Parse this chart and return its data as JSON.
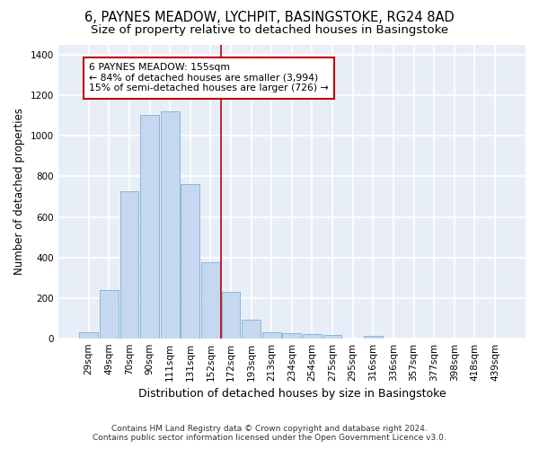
{
  "title": "6, PAYNES MEADOW, LYCHPIT, BASINGSTOKE, RG24 8AD",
  "subtitle": "Size of property relative to detached houses in Basingstoke",
  "xlabel": "Distribution of detached houses by size in Basingstoke",
  "ylabel": "Number of detached properties",
  "footer_line1": "Contains HM Land Registry data © Crown copyright and database right 2024.",
  "footer_line2": "Contains public sector information licensed under the Open Government Licence v3.0.",
  "bar_labels": [
    "29sqm",
    "49sqm",
    "70sqm",
    "90sqm",
    "111sqm",
    "131sqm",
    "152sqm",
    "172sqm",
    "193sqm",
    "213sqm",
    "234sqm",
    "254sqm",
    "275sqm",
    "295sqm",
    "316sqm",
    "336sqm",
    "357sqm",
    "377sqm",
    "398sqm",
    "418sqm",
    "439sqm"
  ],
  "bar_values": [
    30,
    240,
    725,
    1105,
    1120,
    760,
    375,
    230,
    90,
    30,
    25,
    20,
    15,
    0,
    10,
    0,
    0,
    0,
    0,
    0,
    0
  ],
  "bar_color": "#c5d8f0",
  "bar_edge_color": "#7aafd4",
  "vline_x": 6.5,
  "vline_color": "#c00000",
  "annotation_text": "6 PAYNES MEADOW: 155sqm\n← 84% of detached houses are smaller (3,994)\n15% of semi-detached houses are larger (726) →",
  "annotation_box_color": "#ffffff",
  "annotation_box_edge": "#c00000",
  "ylim": [
    0,
    1450
  ],
  "fig_bg_color": "#ffffff",
  "plot_bg_color": "#e8eef8",
  "grid_color": "#ffffff",
  "title_fontsize": 10.5,
  "subtitle_fontsize": 9.5,
  "ylabel_fontsize": 8.5,
  "xlabel_fontsize": 9,
  "tick_fontsize": 7.5,
  "footer_fontsize": 6.5
}
